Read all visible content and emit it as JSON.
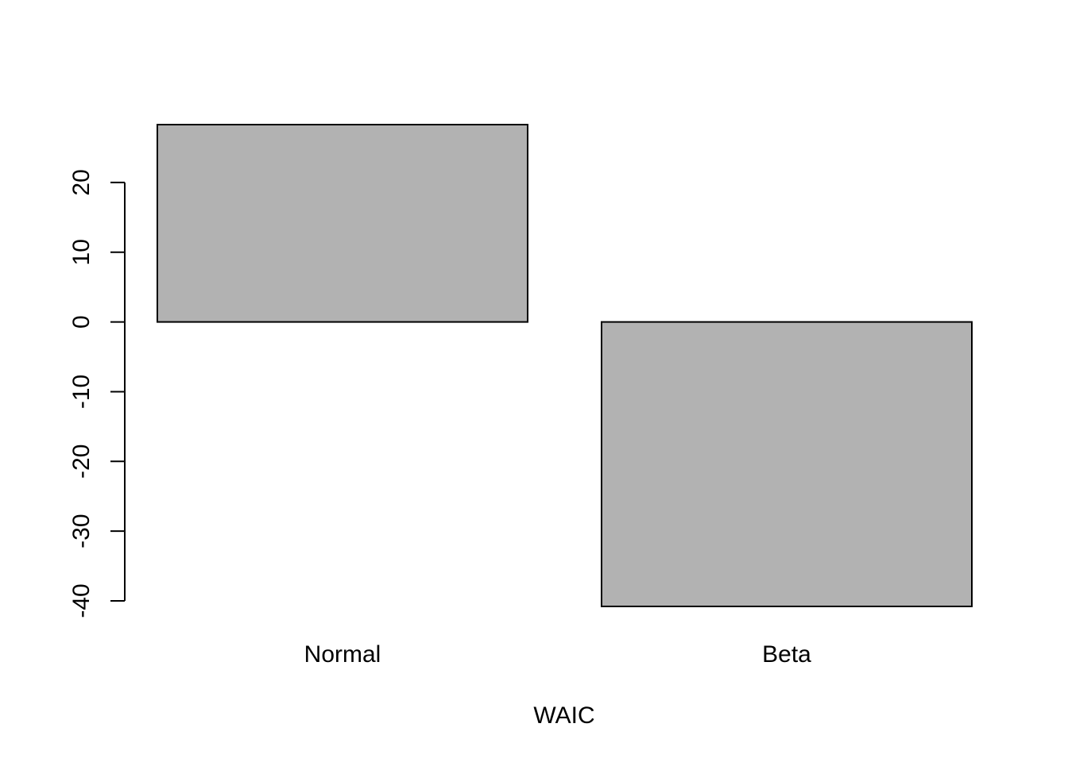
{
  "chart_data": {
    "type": "bar",
    "categories": [
      "Normal",
      "Beta"
    ],
    "values": [
      28.3,
      -40.8
    ],
    "xlabel": "WAIC",
    "ylabel": "",
    "ylim": [
      -40.8,
      28.3
    ],
    "yticks": [
      -40,
      -30,
      -20,
      -10,
      0,
      10,
      20
    ],
    "grid": false,
    "legend": "none",
    "bar_fill": "#b2b2b2",
    "bar_stroke": "#000000"
  }
}
